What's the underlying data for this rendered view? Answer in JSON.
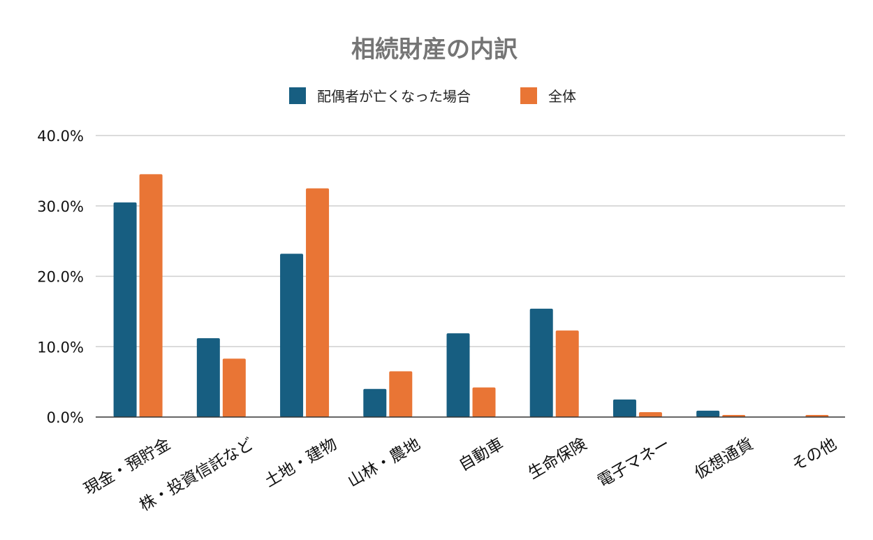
{
  "chart_data": {
    "type": "bar",
    "title": "相続財産の内訳",
    "categories": [
      "現金・預貯金",
      "株・投資信託など",
      "土地・建物",
      "山林・農地",
      "自動車",
      "生命保険",
      "電子マネー",
      "仮想通貨",
      "その他"
    ],
    "series": [
      {
        "name": "配偶者が亡くなった場合",
        "color": "#175e81",
        "values": [
          30.5,
          11.2,
          23.2,
          4.0,
          11.9,
          15.4,
          2.5,
          0.9,
          0.0
        ]
      },
      {
        "name": "全体",
        "color": "#e97535",
        "values": [
          34.5,
          8.3,
          32.5,
          6.5,
          4.2,
          12.3,
          0.7,
          0.3,
          0.3
        ]
      }
    ],
    "yticks": [
      "0.0%",
      "10.0%",
      "20.0%",
      "30.0%",
      "40.0%"
    ],
    "ylim": [
      0,
      40
    ],
    "grid": true,
    "legend_position": "top"
  }
}
